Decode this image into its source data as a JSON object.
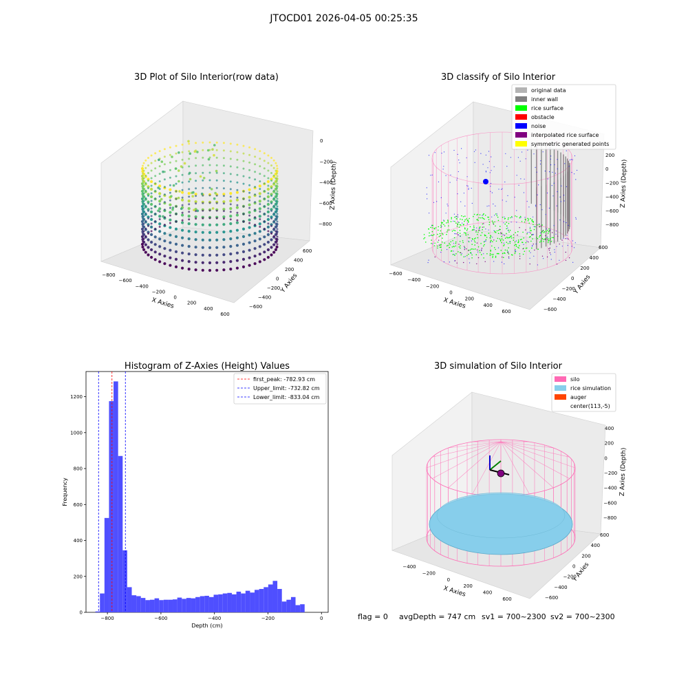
{
  "suptitle": "JTOCD01 2026-04-05 00:25:35",
  "footer": {
    "flag": "flag = 0",
    "avg_depth": "avgDepth = 747 cm",
    "sv1": "sv1 = 700~2300",
    "sv2": "sv2 = 700~2300"
  },
  "colors": {
    "histogram_bar": "#4f4fff",
    "first_peak_line": "#ff0000",
    "limit_lines": "#0000ff",
    "pane_face": "#f2f2f2",
    "silo": "#ff69b4",
    "rice": "#87ceeb",
    "auger": "#ff4500",
    "legend_original": "#b3b3b3",
    "legend_wall": "#808080",
    "legend_rice": "#00ff00",
    "legend_obstacle": "#ff0000",
    "legend_noise": "#0000ff",
    "legend_interp": "#800080",
    "legend_sym": "#ffff00"
  },
  "panel_raw": {
    "title": "3D Plot of Silo Interior(row data)",
    "xlabel": "X Axies",
    "ylabel": "Y Axies",
    "zlabel": "Z Axies (Depth)",
    "xticks": [
      "−800",
      "−600",
      "−400",
      "−200",
      "0",
      "200",
      "400",
      "600"
    ],
    "yticks": [
      "600",
      "400",
      "200",
      "0",
      "−200",
      "−400",
      "−600"
    ],
    "zticks": [
      "0",
      "−200",
      "−400",
      "−600",
      "−800"
    ],
    "colormap": "viridis"
  },
  "panel_classify": {
    "title": "3D classify of Silo Interior",
    "xlabel": "X Axies",
    "ylabel": "Y Axies",
    "zlabel": "Z Axies (Depth)",
    "xticks": [
      "−600",
      "−400",
      "−200",
      "0",
      "200",
      "400",
      "600"
    ],
    "yticks": [
      "600",
      "400",
      "200",
      "0",
      "−200",
      "−400",
      "−600"
    ],
    "zticks": [
      "200",
      "0",
      "−200",
      "−400",
      "−600",
      "−800"
    ],
    "legend": [
      {
        "label": "original data",
        "color": "#b3b3b3"
      },
      {
        "label": "inner wall",
        "color": "#808080"
      },
      {
        "label": "rice surface",
        "color": "#00ff00"
      },
      {
        "label": "obstacle",
        "color": "#ff0000"
      },
      {
        "label": "noise",
        "color": "#0000ff"
      },
      {
        "label": "interpolated rice surface",
        "color": "#800080"
      },
      {
        "label": "symmetric generated points",
        "color": "#ffff00"
      }
    ]
  },
  "panel_sim": {
    "title": "3D simulation of Silo Interior",
    "xlabel": "X Axies",
    "ylabel": "Y Axies",
    "zlabel": "Z Axies (Depth)",
    "xticks": [
      "−400",
      "−200",
      "0",
      "200",
      "400",
      "600"
    ],
    "yticks": [
      "600",
      "400",
      "200",
      "0",
      "−200",
      "−400",
      "−600"
    ],
    "zticks": [
      "400",
      "200",
      "0",
      "−200",
      "−400",
      "−600",
      "−800"
    ],
    "legend": [
      {
        "label": "silo",
        "color": "#ff69b4"
      },
      {
        "label": "rice simulation",
        "color": "#87ceeb"
      },
      {
        "label": "auger",
        "color": "#ff4500"
      },
      {
        "label": "center(113,-5)",
        "color": ""
      }
    ]
  },
  "chart_data": {
    "type": "bar",
    "title": "Histogram of Z-Axies (Height) Values",
    "xlabel": "Depth (cm)",
    "ylabel": "Frequency",
    "xlim": [
      -880,
      25
    ],
    "ylim": [
      0,
      1340
    ],
    "xticks": [
      -800,
      -600,
      -400,
      -200,
      0
    ],
    "xtick_labels": [
      "−800",
      "−600",
      "−400",
      "−200",
      "0"
    ],
    "yticks": [
      0,
      200,
      400,
      600,
      800,
      1000,
      1200
    ],
    "bins": {
      "edges_start": -845,
      "bin_width": 17,
      "counts": [
        5,
        105,
        525,
        1175,
        1285,
        870,
        345,
        140,
        95,
        90,
        80,
        68,
        70,
        78,
        68,
        70,
        70,
        72,
        82,
        75,
        80,
        78,
        85,
        90,
        92,
        85,
        98,
        100,
        105,
        108,
        100,
        115,
        105,
        120,
        110,
        125,
        130,
        140,
        155,
        175,
        130,
        60,
        70,
        85,
        40,
        45
      ]
    },
    "lines": [
      {
        "name": "first_peak: -782.93 cm",
        "x": -782.93,
        "style": "dashed",
        "color": "#ff0000"
      },
      {
        "name": "Upper_limit: -732.82 cm",
        "x": -732.82,
        "style": "dashed",
        "color": "#0000ff"
      },
      {
        "name": "Lower_limit: -833.04 cm",
        "x": -833.04,
        "style": "dashed",
        "color": "#0000ff"
      }
    ],
    "grid": false,
    "legend_position": "top-right"
  }
}
